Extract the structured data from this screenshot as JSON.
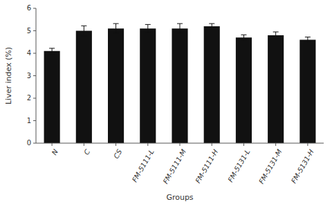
{
  "chart_data": {
    "type": "bar",
    "categories": [
      "N",
      "C",
      "CS",
      "FM-5111-L",
      "FM-5111-M",
      "FM-5111-H",
      "FM-5131-L",
      "FM-5131-M",
      "FM-5131-H"
    ],
    "values": [
      4.1,
      5.0,
      5.1,
      5.1,
      5.1,
      5.2,
      4.7,
      4.8,
      4.6
    ],
    "errors": [
      0.12,
      0.22,
      0.22,
      0.18,
      0.22,
      0.12,
      0.12,
      0.15,
      0.12
    ],
    "color": "#111111",
    "xlabel": "Groups",
    "ylabel": "Liver index (%)",
    "ylim": [
      0,
      6
    ],
    "yticks": [
      0,
      1,
      2,
      3,
      4,
      5,
      6
    ],
    "grid": false
  }
}
